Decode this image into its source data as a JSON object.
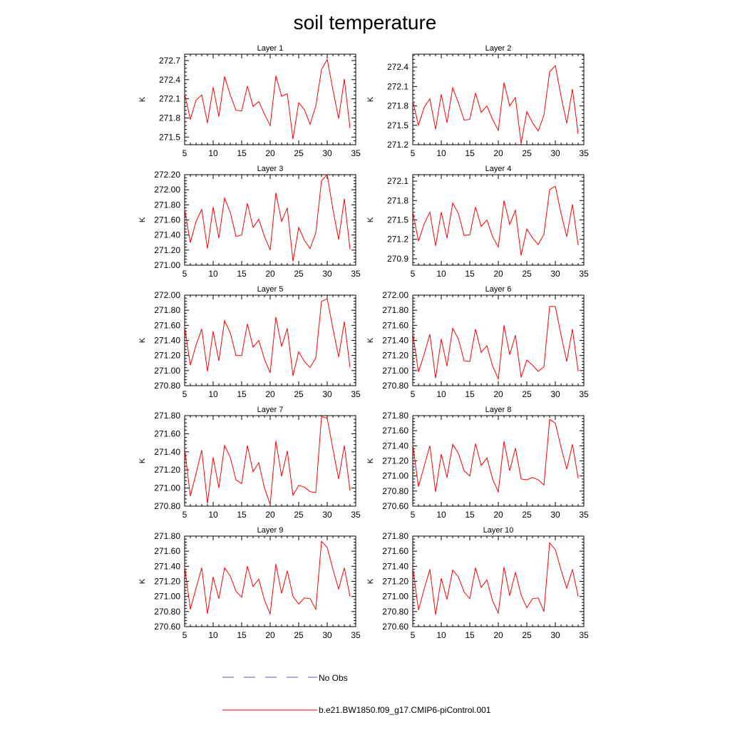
{
  "title": "soil temperature",
  "legend": {
    "entries": [
      {
        "label": "No Obs",
        "style": "dashed",
        "color": "#5a5ad8"
      },
      {
        "label": "b.e21.BW1850.f09_g17.CMIP6-piControl.001",
        "style": "solid",
        "color": "#ff0000"
      }
    ]
  },
  "chart_data": [
    {
      "type": "line",
      "title": "Layer 1",
      "xlabel": "",
      "ylabel": "K",
      "xlim": [
        5,
        35
      ],
      "ylim": [
        271.38,
        272.8
      ],
      "xticks": [
        5,
        10,
        15,
        20,
        25,
        30,
        35
      ],
      "yticks": [
        271.5,
        271.8,
        272.1,
        272.4,
        272.7
      ],
      "ytick_labels": [
        "271.5",
        "271.8",
        "272.1",
        "272.4",
        "272.7"
      ],
      "x": [
        5,
        6,
        7,
        8,
        9,
        10,
        11,
        12,
        13,
        14,
        15,
        16,
        17,
        18,
        19,
        20,
        21,
        22,
        23,
        24,
        25,
        26,
        27,
        28,
        29,
        30,
        31,
        32,
        33,
        34
      ],
      "series": [
        {
          "name": "b.e21.BW1850.f09_g17.CMIP6-piControl.001",
          "color": "#ff0000",
          "values": [
            272.18,
            271.78,
            272.08,
            272.16,
            271.72,
            272.28,
            271.82,
            272.45,
            272.16,
            271.92,
            271.91,
            272.3,
            271.98,
            272.06,
            271.86,
            271.68,
            272.46,
            272.14,
            272.18,
            271.47,
            272.04,
            271.93,
            271.7,
            271.99,
            272.56,
            272.72,
            272.24,
            271.79,
            272.41,
            271.64
          ]
        }
      ]
    },
    {
      "type": "line",
      "title": "Layer 2",
      "xlabel": "",
      "ylabel": "K",
      "xlim": [
        5,
        35
      ],
      "ylim": [
        271.2,
        272.6
      ],
      "xticks": [
        5,
        10,
        15,
        20,
        25,
        30,
        35
      ],
      "yticks": [
        271.2,
        271.5,
        271.8,
        272.1,
        272.4
      ],
      "ytick_labels": [
        "271.2",
        "271.5",
        "271.8",
        "272.1",
        "272.4"
      ],
      "x": [
        5,
        6,
        7,
        8,
        9,
        10,
        11,
        12,
        13,
        14,
        15,
        16,
        17,
        18,
        19,
        20,
        21,
        22,
        23,
        24,
        25,
        26,
        27,
        28,
        29,
        30,
        31,
        32,
        33,
        34
      ],
      "series": [
        {
          "name": "b.e21.BW1850.f09_g17.CMIP6-piControl.001",
          "color": "#ff0000",
          "values": [
            271.88,
            271.5,
            271.78,
            271.91,
            271.44,
            271.98,
            271.54,
            272.08,
            271.85,
            271.58,
            271.59,
            272.0,
            271.7,
            271.8,
            271.59,
            271.42,
            272.16,
            271.8,
            271.93,
            271.22,
            271.71,
            271.54,
            271.41,
            271.66,
            272.33,
            272.42,
            271.95,
            271.53,
            272.06,
            271.37
          ]
        }
      ]
    },
    {
      "type": "line",
      "title": "Layer 3",
      "xlabel": "",
      "ylabel": "K",
      "xlim": [
        5,
        35
      ],
      "ylim": [
        271.0,
        272.2
      ],
      "xticks": [
        5,
        10,
        15,
        20,
        25,
        30,
        35
      ],
      "yticks": [
        271.0,
        271.2,
        271.4,
        271.6,
        271.8,
        272.0,
        272.2
      ],
      "ytick_labels": [
        "271.00",
        "271.20",
        "271.40",
        "271.60",
        "271.80",
        "272.00",
        "272.20"
      ],
      "x": [
        5,
        6,
        7,
        8,
        9,
        10,
        11,
        12,
        13,
        14,
        15,
        16,
        17,
        18,
        19,
        20,
        21,
        22,
        23,
        24,
        25,
        26,
        27,
        28,
        29,
        30,
        31,
        32,
        33,
        34
      ],
      "series": [
        {
          "name": "b.e21.BW1850.f09_g17.CMIP6-piControl.001",
          "color": "#ff0000",
          "values": [
            271.74,
            271.3,
            271.58,
            271.74,
            271.22,
            271.77,
            271.36,
            271.89,
            271.7,
            271.38,
            271.4,
            271.82,
            271.5,
            271.61,
            271.38,
            271.2,
            271.96,
            271.58,
            271.76,
            271.05,
            271.5,
            271.33,
            271.22,
            271.43,
            272.12,
            272.2,
            271.74,
            271.34,
            271.88,
            271.21
          ]
        }
      ]
    },
    {
      "type": "line",
      "title": "Layer 4",
      "xlabel": "",
      "ylabel": "K",
      "xlim": [
        5,
        35
      ],
      "ylim": [
        270.8,
        272.2
      ],
      "xticks": [
        5,
        10,
        15,
        20,
        25,
        30,
        35
      ],
      "yticks": [
        270.9,
        271.2,
        271.5,
        271.8,
        272.1
      ],
      "ytick_labels": [
        "270.9",
        "271.2",
        "271.5",
        "271.8",
        "272.1"
      ],
      "x": [
        5,
        6,
        7,
        8,
        9,
        10,
        11,
        12,
        13,
        14,
        15,
        16,
        17,
        18,
        19,
        20,
        21,
        22,
        23,
        24,
        25,
        26,
        27,
        28,
        29,
        30,
        31,
        32,
        33,
        34
      ],
      "series": [
        {
          "name": "b.e21.BW1850.f09_g17.CMIP6-piControl.001",
          "color": "#ff0000",
          "values": [
            271.63,
            271.17,
            271.44,
            271.62,
            271.1,
            271.62,
            271.22,
            271.76,
            271.6,
            271.26,
            271.27,
            271.7,
            271.4,
            271.5,
            271.24,
            271.08,
            271.8,
            271.43,
            271.65,
            270.95,
            271.36,
            271.22,
            271.12,
            271.28,
            271.97,
            272.02,
            271.6,
            271.24,
            271.74,
            271.11
          ]
        }
      ]
    },
    {
      "type": "line",
      "title": "Layer 5",
      "xlabel": "",
      "ylabel": "K",
      "xlim": [
        5,
        35
      ],
      "ylim": [
        270.8,
        272.0
      ],
      "xticks": [
        5,
        10,
        15,
        20,
        25,
        30,
        35
      ],
      "yticks": [
        270.8,
        271.0,
        271.2,
        271.4,
        271.6,
        271.8,
        272.0
      ],
      "ytick_labels": [
        "270.80",
        "271.00",
        "271.20",
        "271.40",
        "271.60",
        "271.80",
        "272.00"
      ],
      "x": [
        5,
        6,
        7,
        8,
        9,
        10,
        11,
        12,
        13,
        14,
        15,
        16,
        17,
        18,
        19,
        20,
        21,
        22,
        23,
        24,
        25,
        26,
        27,
        28,
        29,
        30,
        31,
        32,
        33,
        34
      ],
      "series": [
        {
          "name": "b.e21.BW1850.f09_g17.CMIP6-piControl.001",
          "color": "#ff0000",
          "values": [
            271.58,
            271.07,
            271.34,
            271.55,
            270.99,
            271.52,
            271.13,
            271.66,
            271.5,
            271.2,
            271.2,
            271.62,
            271.31,
            271.4,
            271.15,
            270.97,
            271.71,
            271.32,
            271.56,
            270.93,
            271.25,
            271.12,
            271.04,
            271.17,
            271.92,
            271.95,
            271.56,
            271.18,
            271.65,
            271.04
          ]
        }
      ]
    },
    {
      "type": "line",
      "title": "Layer 6",
      "xlabel": "",
      "ylabel": "K",
      "xlim": [
        5,
        35
      ],
      "ylim": [
        270.8,
        272.0
      ],
      "xticks": [
        5,
        10,
        15,
        20,
        25,
        30,
        35
      ],
      "yticks": [
        270.8,
        271.0,
        271.2,
        271.4,
        271.6,
        271.8,
        272.0
      ],
      "ytick_labels": [
        "270.80",
        "271.00",
        "271.20",
        "271.40",
        "271.60",
        "271.80",
        "272.00"
      ],
      "x": [
        5,
        6,
        7,
        8,
        9,
        10,
        11,
        12,
        13,
        14,
        15,
        16,
        17,
        18,
        19,
        20,
        21,
        22,
        23,
        24,
        25,
        26,
        27,
        28,
        29,
        30,
        31,
        32,
        33,
        34
      ],
      "series": [
        {
          "name": "b.e21.BW1850.f09_g17.CMIP6-piControl.001",
          "color": "#ff0000",
          "values": [
            271.5,
            270.98,
            271.22,
            271.48,
            270.9,
            271.42,
            271.06,
            271.56,
            271.42,
            271.13,
            271.12,
            271.55,
            271.24,
            271.33,
            271.06,
            270.89,
            271.6,
            271.21,
            271.47,
            270.91,
            271.14,
            271.07,
            270.99,
            271.05,
            271.85,
            271.85,
            271.47,
            271.12,
            271.55,
            270.99
          ]
        }
      ]
    },
    {
      "type": "line",
      "title": "Layer 7",
      "xlabel": "",
      "ylabel": "K",
      "xlim": [
        5,
        35
      ],
      "ylim": [
        270.8,
        271.8
      ],
      "xticks": [
        5,
        10,
        15,
        20,
        25,
        30,
        35
      ],
      "yticks": [
        270.8,
        271.0,
        271.2,
        271.4,
        271.6,
        271.8
      ],
      "ytick_labels": [
        "270.80",
        "271.00",
        "271.20",
        "271.40",
        "271.60",
        "271.80"
      ],
      "x": [
        5,
        6,
        7,
        8,
        9,
        10,
        11,
        12,
        13,
        14,
        15,
        16,
        17,
        18,
        19,
        20,
        21,
        22,
        23,
        24,
        25,
        26,
        27,
        28,
        29,
        30,
        31,
        32,
        33,
        34
      ],
      "series": [
        {
          "name": "b.e21.BW1850.f09_g17.CMIP6-piControl.001",
          "color": "#ff0000",
          "values": [
            271.44,
            270.91,
            271.16,
            271.42,
            270.83,
            271.34,
            271.0,
            271.47,
            271.34,
            271.09,
            271.05,
            271.47,
            271.18,
            271.28,
            271.0,
            270.82,
            271.52,
            271.13,
            271.41,
            270.92,
            271.03,
            271.01,
            270.96,
            270.95,
            271.79,
            271.77,
            271.43,
            271.1,
            271.47,
            270.97
          ]
        }
      ]
    },
    {
      "type": "line",
      "title": "Layer 8",
      "xlabel": "",
      "ylabel": "K",
      "xlim": [
        5,
        35
      ],
      "ylim": [
        270.6,
        271.8
      ],
      "xticks": [
        5,
        10,
        15,
        20,
        25,
        30,
        35
      ],
      "yticks": [
        270.6,
        270.8,
        271.0,
        271.2,
        271.4,
        271.6,
        271.8
      ],
      "ytick_labels": [
        "270.60",
        "270.80",
        "271.00",
        "271.20",
        "271.40",
        "271.60",
        "271.80"
      ],
      "x": [
        5,
        6,
        7,
        8,
        9,
        10,
        11,
        12,
        13,
        14,
        15,
        16,
        17,
        18,
        19,
        20,
        21,
        22,
        23,
        24,
        25,
        26,
        27,
        28,
        29,
        30,
        31,
        32,
        33,
        34
      ],
      "series": [
        {
          "name": "b.e21.BW1850.f09_g17.CMIP6-piControl.001",
          "color": "#ff0000",
          "values": [
            271.42,
            270.86,
            271.13,
            271.4,
            270.79,
            271.29,
            270.98,
            271.42,
            271.3,
            271.07,
            271.0,
            271.43,
            271.14,
            271.24,
            270.96,
            270.79,
            271.46,
            271.07,
            271.37,
            270.96,
            270.95,
            270.98,
            270.95,
            270.88,
            271.75,
            271.7,
            271.38,
            271.09,
            271.42,
            270.97
          ]
        }
      ]
    },
    {
      "type": "line",
      "title": "Layer 9",
      "xlabel": "",
      "ylabel": "K",
      "xlim": [
        5,
        35
      ],
      "ylim": [
        270.6,
        271.8
      ],
      "xticks": [
        5,
        10,
        15,
        20,
        25,
        30,
        35
      ],
      "yticks": [
        270.6,
        270.8,
        271.0,
        271.2,
        271.4,
        271.6,
        271.8
      ],
      "ytick_labels": [
        "270.60",
        "270.80",
        "271.00",
        "271.20",
        "271.40",
        "271.60",
        "271.80"
      ],
      "x": [
        5,
        6,
        7,
        8,
        9,
        10,
        11,
        12,
        13,
        14,
        15,
        16,
        17,
        18,
        19,
        20,
        21,
        22,
        23,
        24,
        25,
        26,
        27,
        28,
        29,
        30,
        31,
        32,
        33,
        34
      ],
      "series": [
        {
          "name": "b.e21.BW1850.f09_g17.CMIP6-piControl.001",
          "color": "#ff0000",
          "values": [
            271.4,
            270.83,
            271.11,
            271.38,
            270.77,
            271.26,
            270.97,
            271.38,
            271.27,
            271.07,
            270.99,
            271.4,
            271.13,
            271.23,
            270.95,
            270.77,
            271.43,
            271.04,
            271.34,
            271.0,
            270.9,
            270.98,
            270.97,
            270.83,
            271.73,
            271.65,
            271.36,
            271.1,
            271.38,
            271.0
          ]
        }
      ]
    },
    {
      "type": "line",
      "title": "Layer 10",
      "xlabel": "",
      "ylabel": "K",
      "xlim": [
        5,
        35
      ],
      "ylim": [
        270.6,
        271.8
      ],
      "xticks": [
        5,
        10,
        15,
        20,
        25,
        30,
        35
      ],
      "yticks": [
        270.6,
        270.8,
        271.0,
        271.2,
        271.4,
        271.6,
        271.8
      ],
      "ytick_labels": [
        "270.60",
        "270.80",
        "271.00",
        "271.20",
        "271.40",
        "271.60",
        "271.80"
      ],
      "x": [
        5,
        6,
        7,
        8,
        9,
        10,
        11,
        12,
        13,
        14,
        15,
        16,
        17,
        18,
        19,
        20,
        21,
        22,
        23,
        24,
        25,
        26,
        27,
        28,
        29,
        30,
        31,
        32,
        33,
        34
      ],
      "series": [
        {
          "name": "b.e21.BW1850.f09_g17.CMIP6-piControl.001",
          "color": "#ff0000",
          "values": [
            271.38,
            270.82,
            271.1,
            271.36,
            270.76,
            271.24,
            270.96,
            271.35,
            271.26,
            271.06,
            270.97,
            271.38,
            271.12,
            271.22,
            270.94,
            270.78,
            271.39,
            271.01,
            271.32,
            271.02,
            270.85,
            270.97,
            270.98,
            270.8,
            271.71,
            271.62,
            271.35,
            271.11,
            271.36,
            271.0
          ]
        }
      ]
    }
  ]
}
